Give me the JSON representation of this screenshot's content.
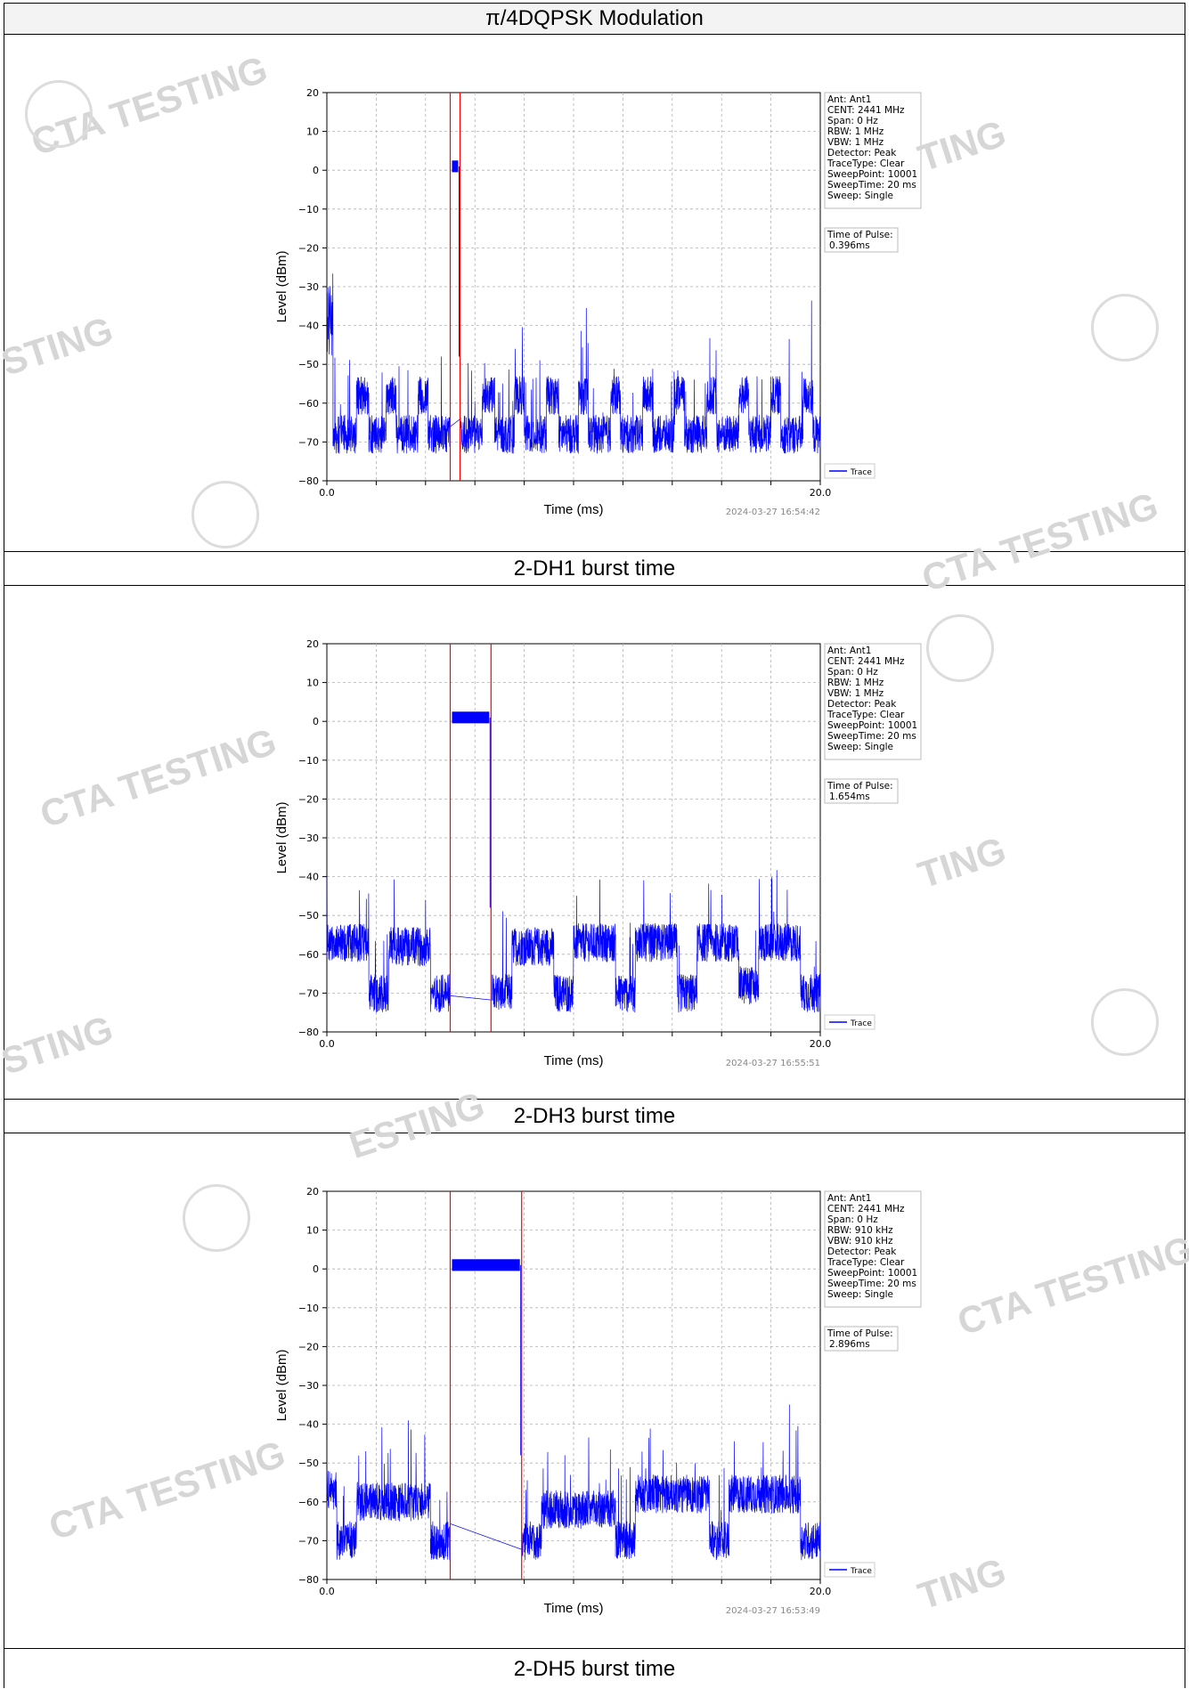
{
  "header": {
    "title": "π/4DQPSK Modulation"
  },
  "watermark": {
    "text": "CTA TESTING",
    "fragment_a": "TING",
    "fragment_b": "STING",
    "fragment_c": "ESTING"
  },
  "chart_data": [
    {
      "type": "line",
      "caption": "2-DH1 burst time",
      "xlabel": "Time (ms)",
      "ylabel": "Level (dBm)",
      "xlim": [
        0.0,
        20.0
      ],
      "ylim": [
        -80,
        20
      ],
      "x_tick_labels": [
        "0.0",
        "20.0"
      ],
      "y_ticks": [
        20,
        10,
        0,
        -10,
        -20,
        -30,
        -40,
        -50,
        -60,
        -70,
        -80
      ],
      "series": [
        {
          "name": "Trace",
          "color": "#0000ff"
        }
      ],
      "burst": {
        "start_ms": 5.0,
        "end_ms": 5.396,
        "level_dbm": 1
      },
      "markers_ms": [
        5.0,
        5.396
      ],
      "marker_color": "#ff0000",
      "noise_segments": [
        [
          0.0,
          0.25,
          -38
        ],
        [
          0.25,
          1.2,
          -68
        ],
        [
          1.2,
          1.7,
          -58
        ],
        [
          1.7,
          2.4,
          -68
        ],
        [
          2.4,
          2.8,
          -58
        ],
        [
          2.8,
          3.7,
          -68
        ],
        [
          3.7,
          4.1,
          -58
        ],
        [
          4.1,
          5.0,
          -68
        ],
        [
          5.4,
          6.3,
          -68
        ],
        [
          6.3,
          6.8,
          -58
        ],
        [
          6.8,
          7.6,
          -68
        ],
        [
          7.6,
          8.0,
          -58
        ],
        [
          8.0,
          8.9,
          -68
        ],
        [
          8.9,
          9.4,
          -58
        ],
        [
          9.4,
          10.2,
          -68
        ],
        [
          10.2,
          10.6,
          -58
        ],
        [
          10.6,
          11.5,
          -68
        ],
        [
          11.5,
          11.9,
          -58
        ],
        [
          11.9,
          12.8,
          -68
        ],
        [
          12.8,
          13.2,
          -58
        ],
        [
          13.2,
          14.1,
          -68
        ],
        [
          14.1,
          14.5,
          -58
        ],
        [
          14.5,
          15.4,
          -68
        ],
        [
          15.4,
          15.8,
          -58
        ],
        [
          15.8,
          16.7,
          -68
        ],
        [
          16.7,
          17.1,
          -58
        ],
        [
          17.1,
          18.0,
          -68
        ],
        [
          18.0,
          18.4,
          -58
        ],
        [
          18.4,
          19.3,
          -68
        ],
        [
          19.3,
          19.7,
          -58
        ],
        [
          19.7,
          20.0,
          -68
        ]
      ],
      "info_box": [
        "Ant: Ant1",
        "CENT: 2441 MHz",
        "Span: 0 Hz",
        "RBW: 1 MHz",
        "VBW: 1 MHz",
        "Detector: Peak",
        "TraceType: Clear",
        "SweepPoint: 10001",
        "SweepTime: 20 ms",
        "Sweep: Single"
      ],
      "pulse_box": [
        "Time of Pulse:",
        "0.396ms"
      ],
      "legend_label": "Trace",
      "legend_position": "bottom-right",
      "timestamp": "2024-03-27 16:54:42",
      "grid": true
    },
    {
      "type": "line",
      "caption": "2-DH3 burst time",
      "xlabel": "Time (ms)",
      "ylabel": "Level (dBm)",
      "xlim": [
        0.0,
        20.0
      ],
      "ylim": [
        -80,
        20
      ],
      "x_tick_labels": [
        "0.0",
        "20.0"
      ],
      "y_ticks": [
        20,
        10,
        0,
        -10,
        -20,
        -30,
        -40,
        -50,
        -60,
        -70,
        -80
      ],
      "series": [
        {
          "name": "Trace",
          "color": "#0000ff"
        }
      ],
      "burst": {
        "start_ms": 5.0,
        "end_ms": 6.654,
        "level_dbm": 1
      },
      "markers_ms": [
        5.0,
        6.654
      ],
      "marker_color": "#ff0000",
      "noise_segments": [
        [
          0.0,
          1.7,
          -57
        ],
        [
          1.7,
          2.5,
          -70
        ],
        [
          2.5,
          4.2,
          -58
        ],
        [
          4.2,
          5.0,
          -70
        ],
        [
          6.7,
          7.5,
          -70
        ],
        [
          7.5,
          9.2,
          -58
        ],
        [
          9.2,
          10.0,
          -70
        ],
        [
          10.0,
          11.7,
          -57
        ],
        [
          11.7,
          12.5,
          -70
        ],
        [
          12.5,
          14.2,
          -57
        ],
        [
          14.2,
          15.0,
          -70
        ],
        [
          15.0,
          16.7,
          -57
        ],
        [
          16.7,
          17.5,
          -68
        ],
        [
          17.5,
          19.2,
          -57
        ],
        [
          19.2,
          20.0,
          -70
        ]
      ],
      "info_box": [
        "Ant: Ant1",
        "CENT: 2441 MHz",
        "Span: 0 Hz",
        "RBW: 1 MHz",
        "VBW: 1 MHz",
        "Detector: Peak",
        "TraceType: Clear",
        "SweepPoint: 10001",
        "SweepTime: 20 ms",
        "Sweep: Single"
      ],
      "pulse_box": [
        "Time of Pulse:",
        "1.654ms"
      ],
      "legend_label": "Trace",
      "legend_position": "bottom-right",
      "timestamp": "2024-03-27 16:55:51",
      "grid": true
    },
    {
      "type": "line",
      "caption": "2-DH5 burst time",
      "xlabel": "Time (ms)",
      "ylabel": "Level (dBm)",
      "xlim": [
        0.0,
        20.0
      ],
      "ylim": [
        -80,
        20
      ],
      "x_tick_labels": [
        "0.0",
        "20.0"
      ],
      "y_ticks": [
        20,
        10,
        0,
        -10,
        -20,
        -30,
        -40,
        -50,
        -60,
        -70,
        -80
      ],
      "series": [
        {
          "name": "Trace",
          "color": "#0000ff"
        }
      ],
      "burst": {
        "start_ms": 5.0,
        "end_ms": 7.896,
        "level_dbm": 1
      },
      "markers_ms": [
        5.0,
        7.896
      ],
      "marker_color": "#ff0000",
      "noise_segments": [
        [
          0.0,
          0.4,
          -57
        ],
        [
          0.4,
          1.2,
          -70
        ],
        [
          1.2,
          4.2,
          -60
        ],
        [
          4.2,
          5.0,
          -70
        ],
        [
          7.9,
          8.7,
          -70
        ],
        [
          8.7,
          11.7,
          -62
        ],
        [
          11.7,
          12.5,
          -70
        ],
        [
          12.5,
          15.5,
          -58
        ],
        [
          15.5,
          16.3,
          -70
        ],
        [
          16.3,
          19.2,
          -58
        ],
        [
          19.2,
          20.0,
          -70
        ]
      ],
      "info_box": [
        "Ant: Ant1",
        "CENT: 2441 MHz",
        "Span: 0 Hz",
        "RBW: 910 kHz",
        "VBW: 910 kHz",
        "Detector: Peak",
        "TraceType: Clear",
        "SweepPoint: 10001",
        "SweepTime: 20 ms",
        "Sweep: Single"
      ],
      "pulse_box": [
        "Time of Pulse:",
        "2.896ms"
      ],
      "legend_label": "Trace",
      "legend_position": "bottom-right",
      "timestamp": "2024-03-27 16:53:49",
      "grid": true
    }
  ]
}
